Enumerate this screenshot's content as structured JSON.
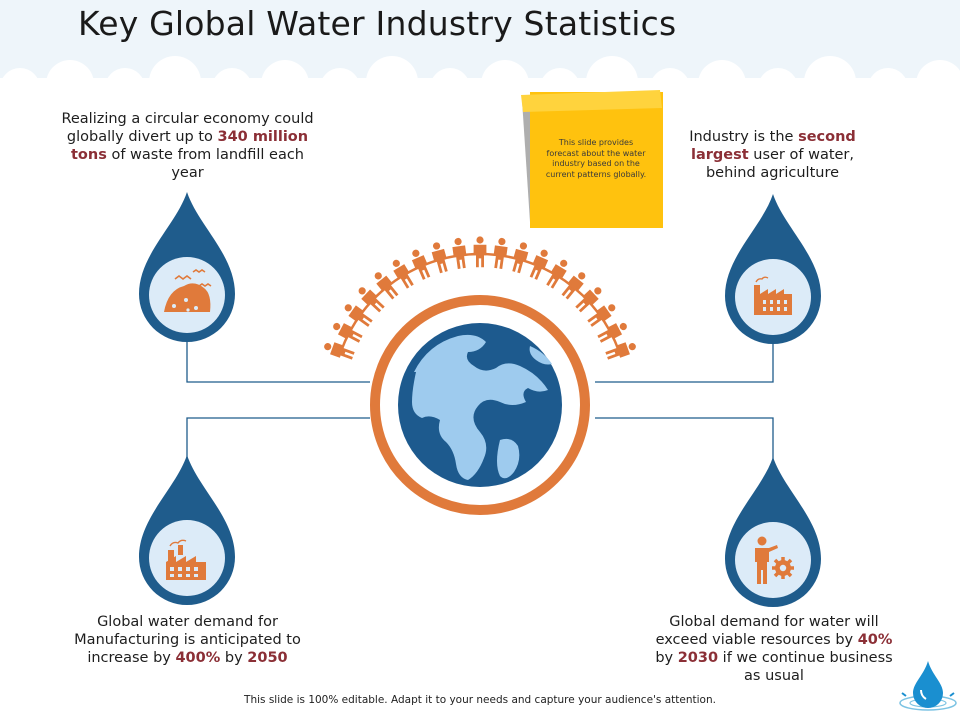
{
  "title": "Key Global Water Industry Statistics",
  "colors": {
    "drop_blue": "#1f5c8c",
    "drop_inner": "#dcebf8",
    "orange": "#e07a3b",
    "highlight": "#8b2f36",
    "note_yellow": "#ffc20e",
    "globe_ocean": "#1d5a8e",
    "globe_land": "#9ecbee"
  },
  "stats": {
    "top_left": {
      "icon": "landfill-icon",
      "pre": "Realizing a circular economy could globally divert up to ",
      "highlight": "340 million tons",
      "post": " of waste from landfill each year"
    },
    "top_right": {
      "icon": "factory-icon",
      "pre": "Industry is the ",
      "highlight": "second largest",
      "post": " user of water, behind agriculture"
    },
    "bottom_left": {
      "icon": "manufacturing-icon",
      "pre": "Global water demand for Manufacturing is anticipated to increase by ",
      "highlight1": "400%",
      "mid": " by ",
      "highlight2": "2050"
    },
    "bottom_right": {
      "icon": "businessman-gear-icon",
      "pre": "Global demand for water will exceed viable resources by ",
      "highlight1": "40%",
      "mid": " by ",
      "highlight2": "2030",
      "post": " if we continue business as usual"
    }
  },
  "note": {
    "text": "This slide provides forecast about the water industry based on the current patterns globally."
  },
  "footer": "This slide is 100% editable. Adapt it to your needs and capture your audience's attention."
}
